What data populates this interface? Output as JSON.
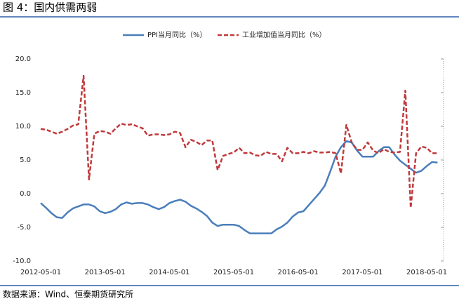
{
  "chart_data": {
    "type": "line",
    "title": "图 4：国内供需两弱",
    "source": "数据来源：Wind、恒泰期货研究所",
    "categories": [
      "2012-05-01",
      null,
      null,
      null,
      null,
      null,
      null,
      null,
      null,
      null,
      null,
      null,
      "2013-05-01",
      null,
      null,
      null,
      null,
      null,
      null,
      null,
      null,
      null,
      null,
      null,
      "2014-05-01",
      null,
      null,
      null,
      null,
      null,
      null,
      null,
      null,
      null,
      null,
      null,
      "2015-05-01",
      null,
      null,
      null,
      null,
      null,
      null,
      null,
      null,
      null,
      null,
      null,
      "2016-05-01",
      null,
      null,
      null,
      null,
      null,
      null,
      null,
      null,
      null,
      null,
      null,
      "2017-05-01",
      null,
      null,
      null,
      null,
      null,
      null,
      null,
      null,
      null,
      null,
      null,
      "2018-05-01",
      null,
      null
    ],
    "series": [
      {
        "name": "PPI当月同比（%）",
        "color": "#4a7ebb",
        "dashed": false,
        "values": [
          -1.4,
          -2.1,
          -2.9,
          -3.5,
          -3.6,
          -2.8,
          -2.2,
          -1.9,
          -1.6,
          -1.6,
          -1.9,
          -2.6,
          -2.9,
          -2.7,
          -2.3,
          -1.6,
          -1.3,
          -1.5,
          -1.4,
          -1.4,
          -1.6,
          -2.0,
          -2.3,
          -2.0,
          -1.4,
          -1.1,
          -0.9,
          -1.2,
          -1.8,
          -2.2,
          -2.7,
          -3.3,
          -4.3,
          -4.8,
          -4.6,
          -4.6,
          -4.6,
          -4.8,
          -5.4,
          -5.9,
          -5.9,
          -5.9,
          -5.9,
          -5.9,
          -5.3,
          -4.9,
          -4.3,
          -3.4,
          -2.8,
          -2.6,
          -1.7,
          -0.8,
          0.1,
          1.2,
          3.3,
          5.5,
          6.9,
          7.8,
          7.6,
          6.4,
          5.5,
          5.5,
          5.5,
          6.3,
          6.9,
          6.9,
          5.8,
          4.9,
          4.3,
          3.7,
          3.1,
          3.4,
          4.1,
          4.7,
          4.6
        ]
      },
      {
        "name": "工业增加值当月同比（%）",
        "color": "#c0393b",
        "dashed": true,
        "values": [
          9.6,
          9.5,
          9.2,
          8.9,
          9.2,
          9.6,
          10.1,
          10.3,
          17.5,
          2.1,
          8.9,
          9.3,
          9.2,
          8.9,
          9.7,
          10.4,
          10.2,
          10.3,
          10.0,
          9.7,
          8.6,
          8.8,
          8.8,
          8.7,
          8.8,
          9.2,
          9.0,
          6.9,
          8.0,
          7.7,
          7.2,
          7.9,
          7.9,
          3.5,
          5.6,
          5.9,
          6.1,
          6.8,
          6.0,
          6.1,
          5.7,
          5.6,
          6.2,
          5.9,
          5.9,
          4.8,
          6.8,
          6.0,
          6.0,
          6.2,
          6.0,
          6.3,
          6.1,
          6.1,
          6.2,
          6.0,
          3.0,
          10.2,
          7.6,
          6.5,
          6.5,
          7.6,
          6.4,
          6.0,
          6.6,
          6.2,
          6.1,
          6.2,
          15.3,
          -2.1,
          6.0,
          7.0,
          6.8,
          6.0,
          6.0
        ]
      }
    ],
    "ylim": [
      -10,
      20
    ],
    "yticks": [
      {
        "value": -10,
        "label": "-10.0"
      },
      {
        "value": -5,
        "label": "-5.0"
      },
      {
        "value": 0,
        "label": "0.0"
      },
      {
        "value": 5,
        "label": "5.0"
      },
      {
        "value": 10,
        "label": "10.0"
      },
      {
        "value": 15,
        "label": "15.0"
      },
      {
        "value": 20,
        "label": "20.0"
      }
    ]
  }
}
